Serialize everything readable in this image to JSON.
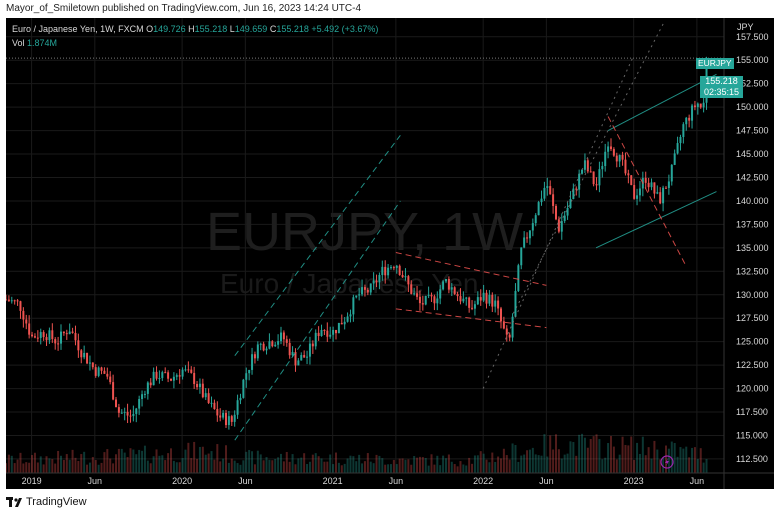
{
  "publisher_line": "Mayor_of_Smiletown published on TradingView.com, Jun 16, 2023 14:24 UTC-4",
  "legend": {
    "title": "Euro / Japanese Yen, 1W, FXCM",
    "open_label": "O",
    "open": "149.726",
    "high_label": "H",
    "high": "155.218",
    "low_label": "L",
    "low": "149.659",
    "close_label": "C",
    "close": "155.218",
    "change": "+5.492 (+3.67%)",
    "vol_label": "Vol",
    "vol_value": "1.874M"
  },
  "watermark": {
    "symbol": "EURJPY, 1W",
    "name": "Euro / Japanese Yen"
  },
  "price_axis": {
    "currency": "JPY"
  },
  "last_price": {
    "symbol": "EURJPY",
    "price": "155.218",
    "countdown": "02:35:15"
  },
  "footer": {
    "brand": "TradingView"
  },
  "colors": {
    "up": "#26a69a",
    "down": "#ef5350",
    "background": "#000000",
    "grid": "#1a1a1a",
    "channel_green": "#26a69a",
    "channel_red": "#ef5350"
  },
  "chart_data": {
    "type": "candlestick",
    "symbol": "EURJPY",
    "interval": "1W",
    "ylim": [
      111.0,
      159.5
    ],
    "y_ticks": [
      112.5,
      115.0,
      117.5,
      120.0,
      122.5,
      125.0,
      127.5,
      130.0,
      132.5,
      135.0,
      137.5,
      140.0,
      142.5,
      145.0,
      147.5,
      150.0,
      152.5,
      155.0,
      157.5
    ],
    "x_ticks": [
      {
        "label": "2019",
        "t": 2019.0
      },
      {
        "label": "Jun",
        "t": 2019.42
      },
      {
        "label": "2020",
        "t": 2020.0
      },
      {
        "label": "Jun",
        "t": 2020.42
      },
      {
        "label": "2021",
        "t": 2021.0
      },
      {
        "label": "Jun",
        "t": 2021.42
      },
      {
        "label": "2022",
        "t": 2022.0
      },
      {
        "label": "Jun",
        "t": 2022.42
      },
      {
        "label": "2023",
        "t": 2023.0
      },
      {
        "label": "Jun",
        "t": 2023.42
      }
    ],
    "t_range": [
      2018.83,
      2023.6
    ],
    "price_path": [
      [
        2018.83,
        129.5
      ],
      [
        2018.92,
        129.0
      ],
      [
        2019.0,
        125.5
      ],
      [
        2019.08,
        126.0
      ],
      [
        2019.17,
        125.0
      ],
      [
        2019.25,
        126.5
      ],
      [
        2019.33,
        124.0
      ],
      [
        2019.42,
        122.0
      ],
      [
        2019.5,
        121.5
      ],
      [
        2019.58,
        117.5
      ],
      [
        2019.67,
        117.0
      ],
      [
        2019.75,
        120.0
      ],
      [
        2019.83,
        121.5
      ],
      [
        2019.92,
        121.0
      ],
      [
        2020.0,
        122.0
      ],
      [
        2020.08,
        121.0
      ],
      [
        2020.17,
        118.5
      ],
      [
        2020.25,
        117.0
      ],
      [
        2020.33,
        116.5
      ],
      [
        2020.42,
        121.5
      ],
      [
        2020.5,
        124.5
      ],
      [
        2020.58,
        125.0
      ],
      [
        2020.67,
        125.5
      ],
      [
        2020.75,
        123.0
      ],
      [
        2020.83,
        123.5
      ],
      [
        2020.92,
        126.5
      ],
      [
        2021.0,
        126.0
      ],
      [
        2021.08,
        127.5
      ],
      [
        2021.17,
        130.0
      ],
      [
        2021.25,
        130.5
      ],
      [
        2021.33,
        132.5
      ],
      [
        2021.42,
        133.5
      ],
      [
        2021.5,
        131.0
      ],
      [
        2021.58,
        129.0
      ],
      [
        2021.67,
        129.5
      ],
      [
        2021.75,
        131.5
      ],
      [
        2021.83,
        130.0
      ],
      [
        2021.92,
        128.5
      ],
      [
        2022.0,
        130.0
      ],
      [
        2022.08,
        129.0
      ],
      [
        2022.17,
        124.5
      ],
      [
        2022.25,
        134.5
      ],
      [
        2022.33,
        138.0
      ],
      [
        2022.42,
        142.0
      ],
      [
        2022.5,
        137.0
      ],
      [
        2022.58,
        140.0
      ],
      [
        2022.67,
        144.0
      ],
      [
        2022.75,
        141.5
      ],
      [
        2022.83,
        146.5
      ],
      [
        2022.92,
        144.0
      ],
      [
        2023.0,
        140.5
      ],
      [
        2023.08,
        142.5
      ],
      [
        2023.17,
        140.0
      ],
      [
        2023.25,
        143.0
      ],
      [
        2023.33,
        148.0
      ],
      [
        2023.42,
        150.5
      ],
      [
        2023.46,
        149.7
      ],
      [
        2023.5,
        155.2
      ]
    ],
    "volume_path": [
      [
        2018.83,
        0.6
      ],
      [
        2019.25,
        0.7
      ],
      [
        2019.67,
        0.8
      ],
      [
        2020.17,
        1.0
      ],
      [
        2020.42,
        0.7
      ],
      [
        2020.92,
        0.7
      ],
      [
        2021.42,
        0.6
      ],
      [
        2021.92,
        0.6
      ],
      [
        2022.17,
        0.9
      ],
      [
        2022.5,
        1.3
      ],
      [
        2022.83,
        1.2
      ],
      [
        2023.17,
        1.1
      ],
      [
        2023.5,
        0.8
      ]
    ],
    "annotations": {
      "rising_channel_2020": {
        "color": "green",
        "style": "dashed",
        "lines": [
          [
            [
              2020.35,
              114.5
            ],
            [
              2021.45,
              140.0
            ]
          ],
          [
            [
              2020.35,
              123.5
            ],
            [
              2021.45,
              147.0
            ]
          ]
        ]
      },
      "descending_channel_2021": {
        "color": "red",
        "style": "dashed",
        "lines": [
          [
            [
              2021.42,
              134.5
            ],
            [
              2022.42,
              131.0
            ]
          ],
          [
            [
              2021.42,
              128.5
            ],
            [
              2022.42,
              126.5
            ]
          ]
        ]
      },
      "rising_channel_2022": {
        "color": "gray",
        "style": "dotted",
        "lines": [
          [
            [
              2022.0,
              120.0
            ],
            [
              2023.0,
              155.5
            ]
          ],
          [
            [
              2022.2,
              128.0
            ],
            [
              2023.2,
              159.0
            ]
          ]
        ]
      },
      "wedge_2022": {
        "color": "green",
        "style": "solid",
        "lines": [
          [
            [
              2022.83,
              147.5
            ],
            [
              2023.55,
              153.5
            ]
          ],
          [
            [
              2022.75,
              135.0
            ],
            [
              2023.55,
              141.0
            ]
          ]
        ]
      },
      "down_line_2022": {
        "color": "red",
        "style": "dashed",
        "lines": [
          [
            [
              2022.83,
              149.0
            ],
            [
              2023.35,
              133.0
            ]
          ]
        ]
      }
    }
  }
}
